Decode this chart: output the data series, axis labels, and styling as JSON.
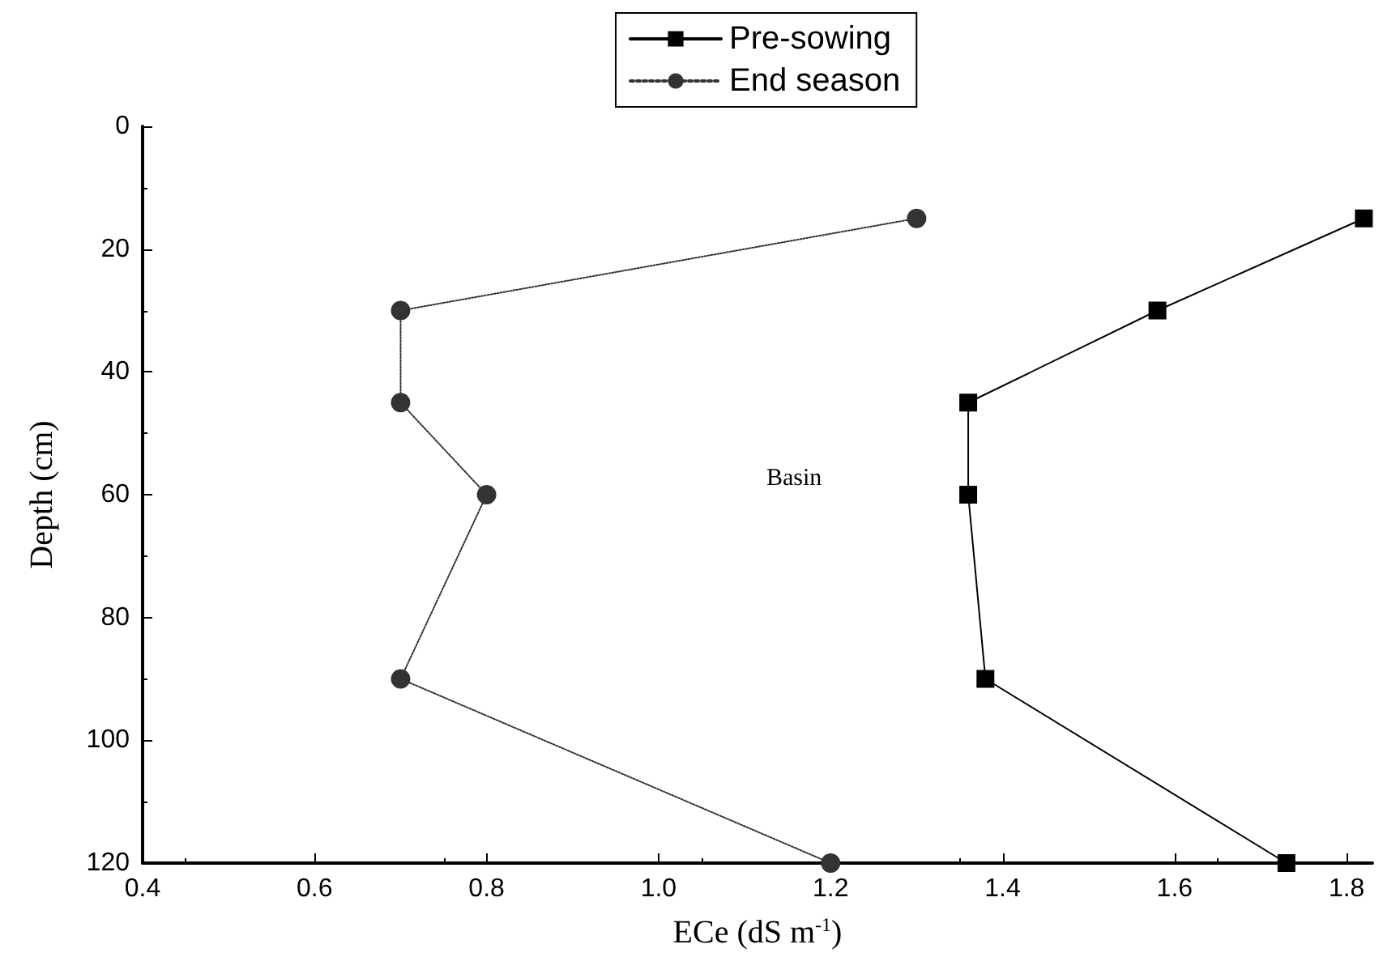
{
  "chart_data": {
    "type": "line",
    "xlabel": "ECe (dS m$^{-1}$)",
    "ylabel": "Depth (cm)",
    "annotations": [
      "Basin"
    ],
    "xlim": [
      0.4,
      1.83
    ],
    "xticks": [
      0.4,
      {
        "value": 0.6,
        "label": "0.6"
      },
      {
        "value": 0.8,
        "label": "0.8"
      },
      {
        "value": 1.0,
        "label": "1.0"
      },
      {
        "value": 1.2,
        "label": "1.2"
      },
      {
        "value": 1.4,
        "label": "1.4"
      },
      {
        "value": 1.6,
        "label": "1.6"
      },
      {
        "value": 1.8,
        "label": "1.8"
      }
    ],
    "ylim": [
      120,
      0
    ],
    "yticks": [
      0,
      20,
      40,
      60,
      80,
      100,
      120
    ],
    "legend": "top",
    "grid": false,
    "series": [
      {
        "name": "Pre-sowing",
        "color": "#000000",
        "marker": "square",
        "line_style": "solid",
        "x": [
          1.82,
          1.58,
          1.36,
          1.36,
          1.38,
          1.73
        ],
        "values": [
          15,
          30,
          45,
          60,
          90,
          120
        ]
      },
      {
        "name": "End season",
        "color": "#333333",
        "marker": "circle",
        "line_style": "dotted",
        "x": [
          1.3,
          0.7,
          0.7,
          0.8,
          0.7,
          1.2
        ],
        "values": [
          15,
          30,
          45,
          60,
          90,
          120
        ]
      }
    ]
  }
}
